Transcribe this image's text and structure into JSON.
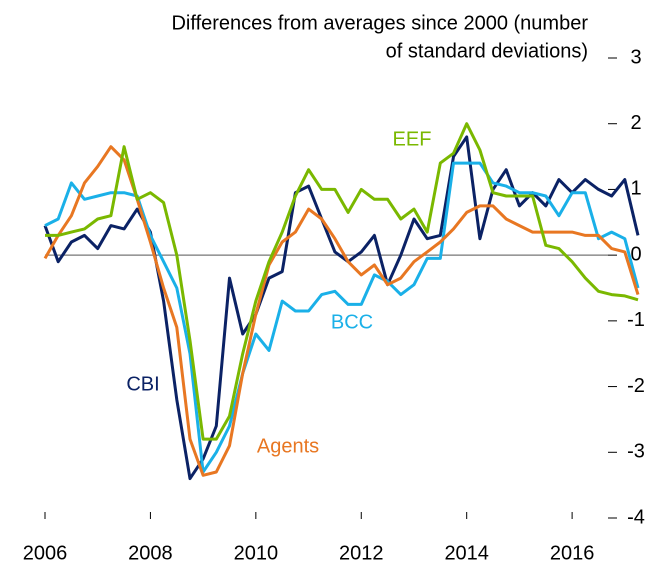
{
  "chart_data": {
    "type": "line",
    "title": [
      "Differences from averages since 2000 (number",
      "of standard deviations)"
    ],
    "x": [
      2006,
      2006.25,
      2006.5,
      2006.75,
      2007,
      2007.25,
      2007.5,
      2007.75,
      2008,
      2008.25,
      2008.5,
      2008.75,
      2009,
      2009.25,
      2009.5,
      2009.75,
      2010,
      2010.25,
      2010.5,
      2010.75,
      2011,
      2011.25,
      2011.5,
      2011.75,
      2012,
      2012.25,
      2012.5,
      2012.75,
      2013,
      2013.25,
      2013.5,
      2013.75,
      2014,
      2014.25,
      2014.5,
      2014.75,
      2015,
      2015.25,
      2015.5,
      2015.75,
      2016,
      2016.25,
      2016.5,
      2016.75,
      2017,
      2017.25
    ],
    "series": [
      {
        "name": "CBI",
        "color": "#0b2265",
        "values": [
          0.45,
          -0.1,
          0.2,
          0.3,
          0.1,
          0.45,
          0.4,
          0.7,
          0.35,
          -0.7,
          -2.2,
          -3.4,
          -3.1,
          -2.6,
          -0.35,
          -1.2,
          -0.9,
          -0.35,
          -0.25,
          0.95,
          1.05,
          0.55,
          0.05,
          -0.1,
          0.05,
          0.3,
          -0.45,
          0.0,
          0.55,
          0.25,
          0.3,
          1.5,
          1.8,
          0.25,
          1.0,
          1.3,
          0.75,
          0.95,
          0.75,
          1.15,
          0.95,
          1.15,
          1.0,
          0.9,
          1.15,
          0.3
        ]
      },
      {
        "name": "BCC",
        "color": "#1ab0e8",
        "values": [
          0.45,
          0.55,
          1.1,
          0.85,
          0.9,
          0.95,
          0.95,
          0.9,
          0.3,
          -0.1,
          -0.5,
          -1.5,
          -3.3,
          -3.0,
          -2.6,
          -1.8,
          -1.2,
          -1.45,
          -0.7,
          -0.85,
          -0.85,
          -0.6,
          -0.55,
          -0.75,
          -0.75,
          -0.3,
          -0.4,
          -0.6,
          -0.45,
          -0.05,
          -0.05,
          1.4,
          1.4,
          1.4,
          1.1,
          1.05,
          0.95,
          0.95,
          0.9,
          0.6,
          0.95,
          0.95,
          0.25,
          0.35,
          0.25,
          -0.5
        ]
      },
      {
        "name": "Agents",
        "color": "#e87722",
        "values": [
          -0.05,
          0.3,
          0.6,
          1.1,
          1.35,
          1.65,
          1.45,
          0.85,
          0.2,
          -0.5,
          -1.1,
          -2.8,
          -3.35,
          -3.3,
          -2.9,
          -1.8,
          -0.9,
          -0.15,
          0.2,
          0.35,
          0.7,
          0.55,
          0.25,
          -0.1,
          -0.3,
          -0.15,
          -0.45,
          -0.35,
          -0.1,
          0.05,
          0.2,
          0.4,
          0.65,
          0.75,
          0.75,
          0.55,
          0.45,
          0.35,
          0.35,
          0.35,
          0.35,
          0.3,
          0.3,
          0.1,
          0.05,
          -0.6
        ]
      },
      {
        "name": "EEF",
        "color": "#7ab800",
        "values": [
          0.3,
          0.3,
          0.35,
          0.4,
          0.55,
          0.6,
          1.65,
          0.85,
          0.95,
          0.8,
          0.0,
          -1.3,
          -2.8,
          -2.8,
          -2.45,
          -1.5,
          -0.7,
          -0.1,
          0.35,
          0.9,
          1.3,
          1.0,
          1.0,
          0.65,
          1.0,
          0.85,
          0.85,
          0.55,
          0.7,
          0.35,
          1.4,
          1.55,
          2.0,
          1.6,
          0.95,
          0.9,
          0.9,
          0.9,
          0.15,
          0.1,
          -0.1,
          -0.35,
          -0.55,
          -0.6,
          -0.62,
          -0.68
        ]
      }
    ],
    "xlim": [
      2006,
      2017.25
    ],
    "xticks": [
      2006,
      2008,
      2010,
      2012,
      2014,
      2016
    ],
    "ylim": [
      -4,
      3
    ],
    "yticks": [
      -4,
      -3,
      -2,
      -1,
      0,
      1,
      2,
      3
    ]
  }
}
